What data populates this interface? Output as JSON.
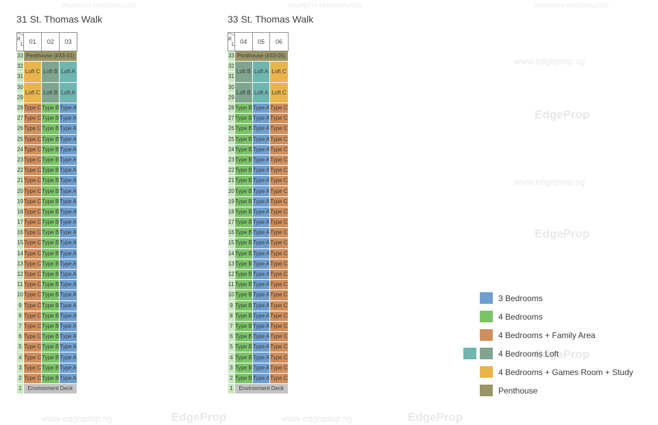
{
  "watermark": {
    "brand": "EdgeProp",
    "tagline": "PROPERTY PERSONALISED",
    "url": "www.edgeprop.sg"
  },
  "colors": {
    "3br": "#6f9fd0",
    "4br": "#7bc466",
    "4br_family": "#d18f5c",
    "4br_loft": "#7fa58e",
    "4br_loft_teal": "#6fb5b0",
    "4br_games": "#e9b44c",
    "penthouse": "#9a9565",
    "level": "#c9e8bf",
    "deck": "#c4c4c4"
  },
  "legend": [
    {
      "label": "3 Bedrooms",
      "color": "#6f9fd0"
    },
    {
      "label": "4 Bedrooms",
      "color": "#7bc466"
    },
    {
      "label": "4 Bedrooms + Family Area",
      "color": "#d18f5c"
    },
    {
      "label": "4 Bedrooms Loft",
      "color": "#7fa58e"
    },
    {
      "label": "4 Bedrooms + Games Room + Study",
      "color": "#e9b44c"
    },
    {
      "label": "Penthouse",
      "color": "#9a9565"
    }
  ],
  "blocks": [
    {
      "title": "31 St. Thomas Walk",
      "unit_label": "Unit",
      "level_label": "Level",
      "units": [
        "01",
        "02",
        "03"
      ],
      "penthouse": "Penthouse (#33-01)",
      "lofts": [
        {
          "levels": "31-32",
          "labels": [
            "Loft C",
            "Loft B",
            "Loft A"
          ]
        },
        {
          "levels": "29-30",
          "labels": [
            "Loft C",
            "Loft B",
            "Loft A"
          ]
        }
      ],
      "types": [
        "Type C",
        "Type B",
        "Type A"
      ],
      "deck": "Environment Deck"
    },
    {
      "title": "33 St. Thomas Walk",
      "unit_label": "Unit",
      "level_label": "Level",
      "units": [
        "04",
        "05",
        "06"
      ],
      "penthouse": "Penthouse (#33-05)",
      "lofts": [
        {
          "levels": "31-32",
          "labels": [
            "Loft B",
            "Loft A",
            "Loft C"
          ]
        },
        {
          "levels": "29-30",
          "labels": [
            "Loft B",
            "Loft A",
            "Loft C"
          ]
        }
      ],
      "types": [
        "Type B",
        "Type A",
        "Type C"
      ],
      "deck": "Environment Deck"
    }
  ],
  "levels": [
    "33",
    "32",
    "31",
    "30",
    "29",
    "28",
    "27",
    "26",
    "25",
    "24",
    "23",
    "22",
    "21",
    "20",
    "19",
    "18",
    "17",
    "16",
    "15",
    "14",
    "13",
    "12",
    "11",
    "10",
    "9",
    "8",
    "7",
    "6",
    "5",
    "4",
    "3",
    "2",
    "1"
  ]
}
